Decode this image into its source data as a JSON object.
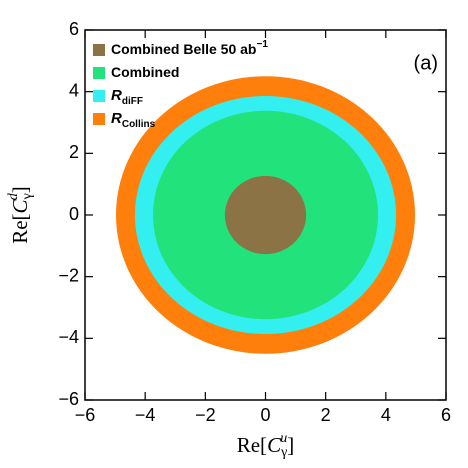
{
  "chart_data": {
    "type": "disc",
    "xlabel": [
      "Re[",
      "C",
      "γ",
      "u",
      "]"
    ],
    "ylabel": [
      "Re[",
      "C",
      "γ",
      "d",
      "]"
    ],
    "annotation": "(a)",
    "xlim": [
      -6,
      6
    ],
    "ylim": [
      -6,
      6
    ],
    "xticks": [
      {
        "value": -6,
        "label": "−6"
      },
      {
        "value": -4,
        "label": "−4"
      },
      {
        "value": -2,
        "label": "−2"
      },
      0,
      2,
      4,
      6
    ],
    "yticks": [
      {
        "value": -6,
        "label": "−6"
      },
      {
        "value": -4,
        "label": "−4"
      },
      {
        "value": -2,
        "label": "−2"
      },
      0,
      2,
      4,
      6
    ],
    "legend": "upper left",
    "series": [
      {
        "name": "Combined Belle 50 ab",
        "superscript": "−1",
        "color": "#8b7346",
        "rx": 1.35,
        "ry": 1.27
      },
      {
        "name": "Combined",
        "color": "#22e27c",
        "rx": 3.74,
        "ry": 3.38
      },
      {
        "name": "R",
        "subscript": "diFF",
        "color": "#33eff0",
        "rx": 4.34,
        "ry": 3.86
      },
      {
        "name": "R",
        "subscript": "Collins",
        "color": "#ff7f0c",
        "rx": 4.97,
        "ry": 4.5
      }
    ]
  }
}
